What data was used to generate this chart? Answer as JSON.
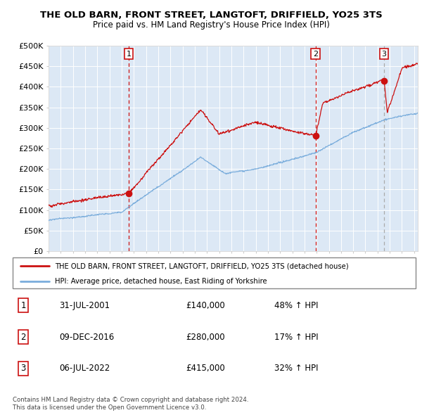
{
  "title": "THE OLD BARN, FRONT STREET, LANGTOFT, DRIFFIELD, YO25 3TS",
  "subtitle": "Price paid vs. HM Land Registry's House Price Index (HPI)",
  "legend_line1": "THE OLD BARN, FRONT STREET, LANGTOFT, DRIFFIELD, YO25 3TS (detached house)",
  "legend_line2": "HPI: Average price, detached house, East Riding of Yorkshire",
  "footer1": "Contains HM Land Registry data © Crown copyright and database right 2024.",
  "footer2": "This data is licensed under the Open Government Licence v3.0.",
  "transactions": [
    {
      "num": 1,
      "date": "31-JUL-2001",
      "price": "£140,000",
      "pct": "48% ↑ HPI"
    },
    {
      "num": 2,
      "date": "09-DEC-2016",
      "price": "£280,000",
      "pct": "17% ↑ HPI"
    },
    {
      "num": 3,
      "date": "06-JUL-2022",
      "price": "£415,000",
      "pct": "32% ↑ HPI"
    }
  ],
  "sale_years": [
    2001.58,
    2016.92,
    2022.52
  ],
  "sale_prices": [
    140000,
    280000,
    415000
  ],
  "hpi_color": "#7aaddc",
  "price_color": "#cc1111",
  "bg_color": "#dce8f5",
  "grid_color": "#ffffff",
  "ylim": [
    0,
    500000
  ],
  "ytick_vals": [
    0,
    50000,
    100000,
    150000,
    200000,
    250000,
    300000,
    350000,
    400000,
    450000,
    500000
  ],
  "xlim_start": 1995.0,
  "xlim_end": 2025.3
}
